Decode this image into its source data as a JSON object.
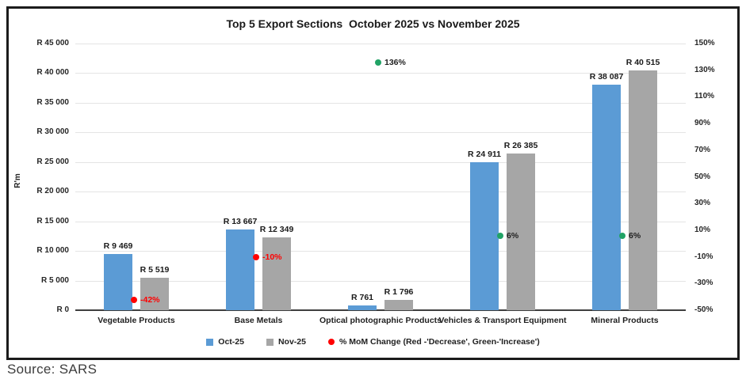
{
  "title": "Top 5 Export Sections  October 2025 vs November 2025",
  "source": "Source: SARS",
  "colors": {
    "oct": "#5B9BD5",
    "nov": "#A6A6A6",
    "red": "#FF0000",
    "green": "#21A366",
    "grid": "#E4E4E4",
    "axis_line": "#3F3F3F",
    "text": "#1F1F1F"
  },
  "left_axis": {
    "title": "R'm",
    "min": 0,
    "max": 45000,
    "step": 5000,
    "ticks": [
      "R 45 000",
      "R 40 000",
      "R 35 000",
      "R 30 000",
      "R 25 000",
      "R 20 000",
      "R 15 000",
      "R 10 000",
      "R 5 000",
      "R 0"
    ]
  },
  "right_axis": {
    "min": -50,
    "max": 150,
    "step": 20,
    "ticks": [
      "150%",
      "130%",
      "110%",
      "90%",
      "70%",
      "50%",
      "30%",
      "10%",
      "-10%",
      "-30%",
      "-50%"
    ]
  },
  "legend": {
    "items": [
      {
        "marker": "square",
        "color_key": "oct",
        "label": "Oct-25"
      },
      {
        "marker": "square",
        "color_key": "nov",
        "label": "Nov-25"
      },
      {
        "marker": "circle",
        "color_key": "red",
        "label": "% MoM Change (Red -'Decrease', Green-'Increase')"
      }
    ]
  },
  "chart_data": {
    "type": "bar",
    "title": "Top 5 Export Sections  October 2025 vs November 2025",
    "xlabel": "",
    "ylabel_left": "R'm",
    "ylabel_right": "% MoM Change",
    "left_axis_range": [
      0,
      45000
    ],
    "right_axis_range": [
      -50,
      150
    ],
    "grid": true,
    "legend_position": "bottom",
    "categories": [
      "Vegetable Products",
      "Base Metals",
      "Optical photographic Products",
      "Vehicles & Transport Equipment",
      "Mineral Products"
    ],
    "series": [
      {
        "name": "Oct-25",
        "color_key": "oct",
        "values": [
          9469,
          13667,
          761,
          24911,
          38087
        ],
        "data_labels": [
          "R 9 469",
          "R 13 667",
          "R 761",
          "R 24 911",
          "R 38 087"
        ]
      },
      {
        "name": "Nov-25",
        "color_key": "nov",
        "values": [
          5519,
          12349,
          1796,
          26385,
          40515
        ],
        "data_labels": [
          "R 5 519",
          "R 12 349",
          "R 1 796",
          "R 26 385",
          "R 40 515"
        ]
      }
    ],
    "mom_change_markers": {
      "name": "% MoM Change",
      "values": [
        -42,
        -10,
        136,
        6,
        6
      ],
      "labels": [
        "-42%",
        "-10%",
        "136%",
        "6%",
        "6%"
      ],
      "directions": [
        "decrease",
        "decrease",
        "increase",
        "increase",
        "increase"
      ],
      "label_colors": [
        "red",
        "red",
        "text",
        "text",
        "text"
      ]
    }
  }
}
